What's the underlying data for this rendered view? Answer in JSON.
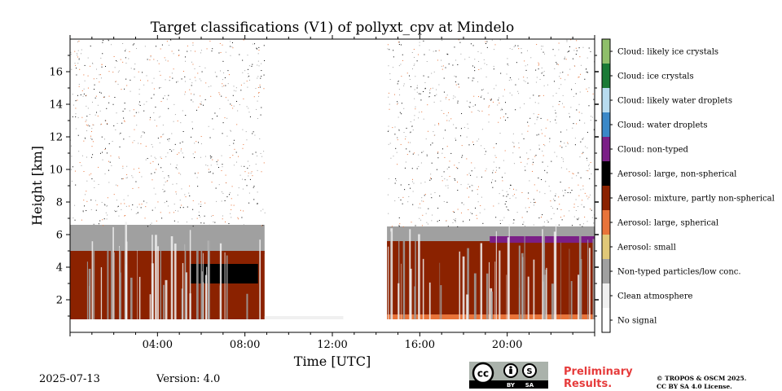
{
  "header": {
    "title": "Target classifications (V1) of pollyxt_cpv at Mindelo"
  },
  "footer": {
    "date": "2025-07-13",
    "version": "Version: 4.0",
    "preliminary_line1": "Preliminary",
    "preliminary_line2": "Results.",
    "copyright_line1": "© TROPOS & OSCM 2025.",
    "copyright_line2": "CC BY SA 4.0 License.",
    "license_badge": {
      "cc": "cc",
      "by": "BY",
      "sa": "SA"
    }
  },
  "chart_data": {
    "type": "heatmap",
    "title": "Target classifications (V1) of pollyxt_cpv at Mindelo",
    "xlabel": "Time [UTC]",
    "ylabel": "Height [km]",
    "xlim": [
      0,
      24
    ],
    "ylim": [
      0,
      18
    ],
    "x_ticks": [
      "04:00",
      "08:00",
      "12:00",
      "16:00",
      "20:00"
    ],
    "x_tick_hours": [
      4,
      8,
      12,
      16,
      20
    ],
    "y_ticks": [
      2,
      4,
      6,
      8,
      10,
      12,
      14,
      16
    ],
    "grid": false,
    "colorbar": [
      {
        "label": "No signal",
        "color": "#ffffff"
      },
      {
        "label": "Clean atmosphere",
        "color": "#f0f0f0"
      },
      {
        "label": "Non-typed particles/low conc.",
        "color": "#a0a0a0"
      },
      {
        "label": "Aerosol: small",
        "color": "#e0c878"
      },
      {
        "label": "Aerosol: large, spherical",
        "color": "#e8743a"
      },
      {
        "label": "Aerosol: mixture, partly non-spherical",
        "color": "#8b2200"
      },
      {
        "label": "Aerosol: large, non-spherical",
        "color": "#000000"
      },
      {
        "label": "Cloud: non-typed",
        "color": "#7b1f87"
      },
      {
        "label": "Cloud: water droplets",
        "color": "#3a88c8"
      },
      {
        "label": "Cloud: likely water droplets",
        "color": "#b8dcf0"
      },
      {
        "label": "Cloud: ice crystals",
        "color": "#1a7a36"
      },
      {
        "label": "Cloud: likely ice crystals",
        "color": "#8fbf6a"
      }
    ],
    "regions": [
      {
        "class": "Non-typed particles/low conc.",
        "t_start": 0.0,
        "t_end": 8.9,
        "h_bottom": 4.8,
        "h_top": 6.6
      },
      {
        "class": "Aerosol: mixture, partly non-spherical",
        "t_start": 0.0,
        "t_end": 8.9,
        "h_bottom": 0.8,
        "h_top": 5.0
      },
      {
        "class": "Aerosol: large, non-spherical",
        "t_start": 5.5,
        "t_end": 8.6,
        "h_bottom": 3.0,
        "h_top": 4.2
      },
      {
        "class": "Clean atmosphere",
        "t_start": 8.9,
        "t_end": 12.5,
        "h_bottom": 0.8,
        "h_top": 1.0
      },
      {
        "class": "Non-typed particles/low conc.",
        "t_start": 14.5,
        "t_end": 24.0,
        "h_bottom": 5.2,
        "h_top": 6.5
      },
      {
        "class": "Aerosol: mixture, partly non-spherical",
        "t_start": 14.5,
        "t_end": 24.0,
        "h_bottom": 0.8,
        "h_top": 5.6
      },
      {
        "class": "Aerosol: large, spherical",
        "t_start": 14.5,
        "t_end": 24.0,
        "h_bottom": 0.8,
        "h_top": 1.1
      },
      {
        "class": "Cloud: non-typed",
        "t_start": 19.2,
        "t_end": 24.0,
        "h_bottom": 5.5,
        "h_top": 5.9
      }
    ]
  }
}
